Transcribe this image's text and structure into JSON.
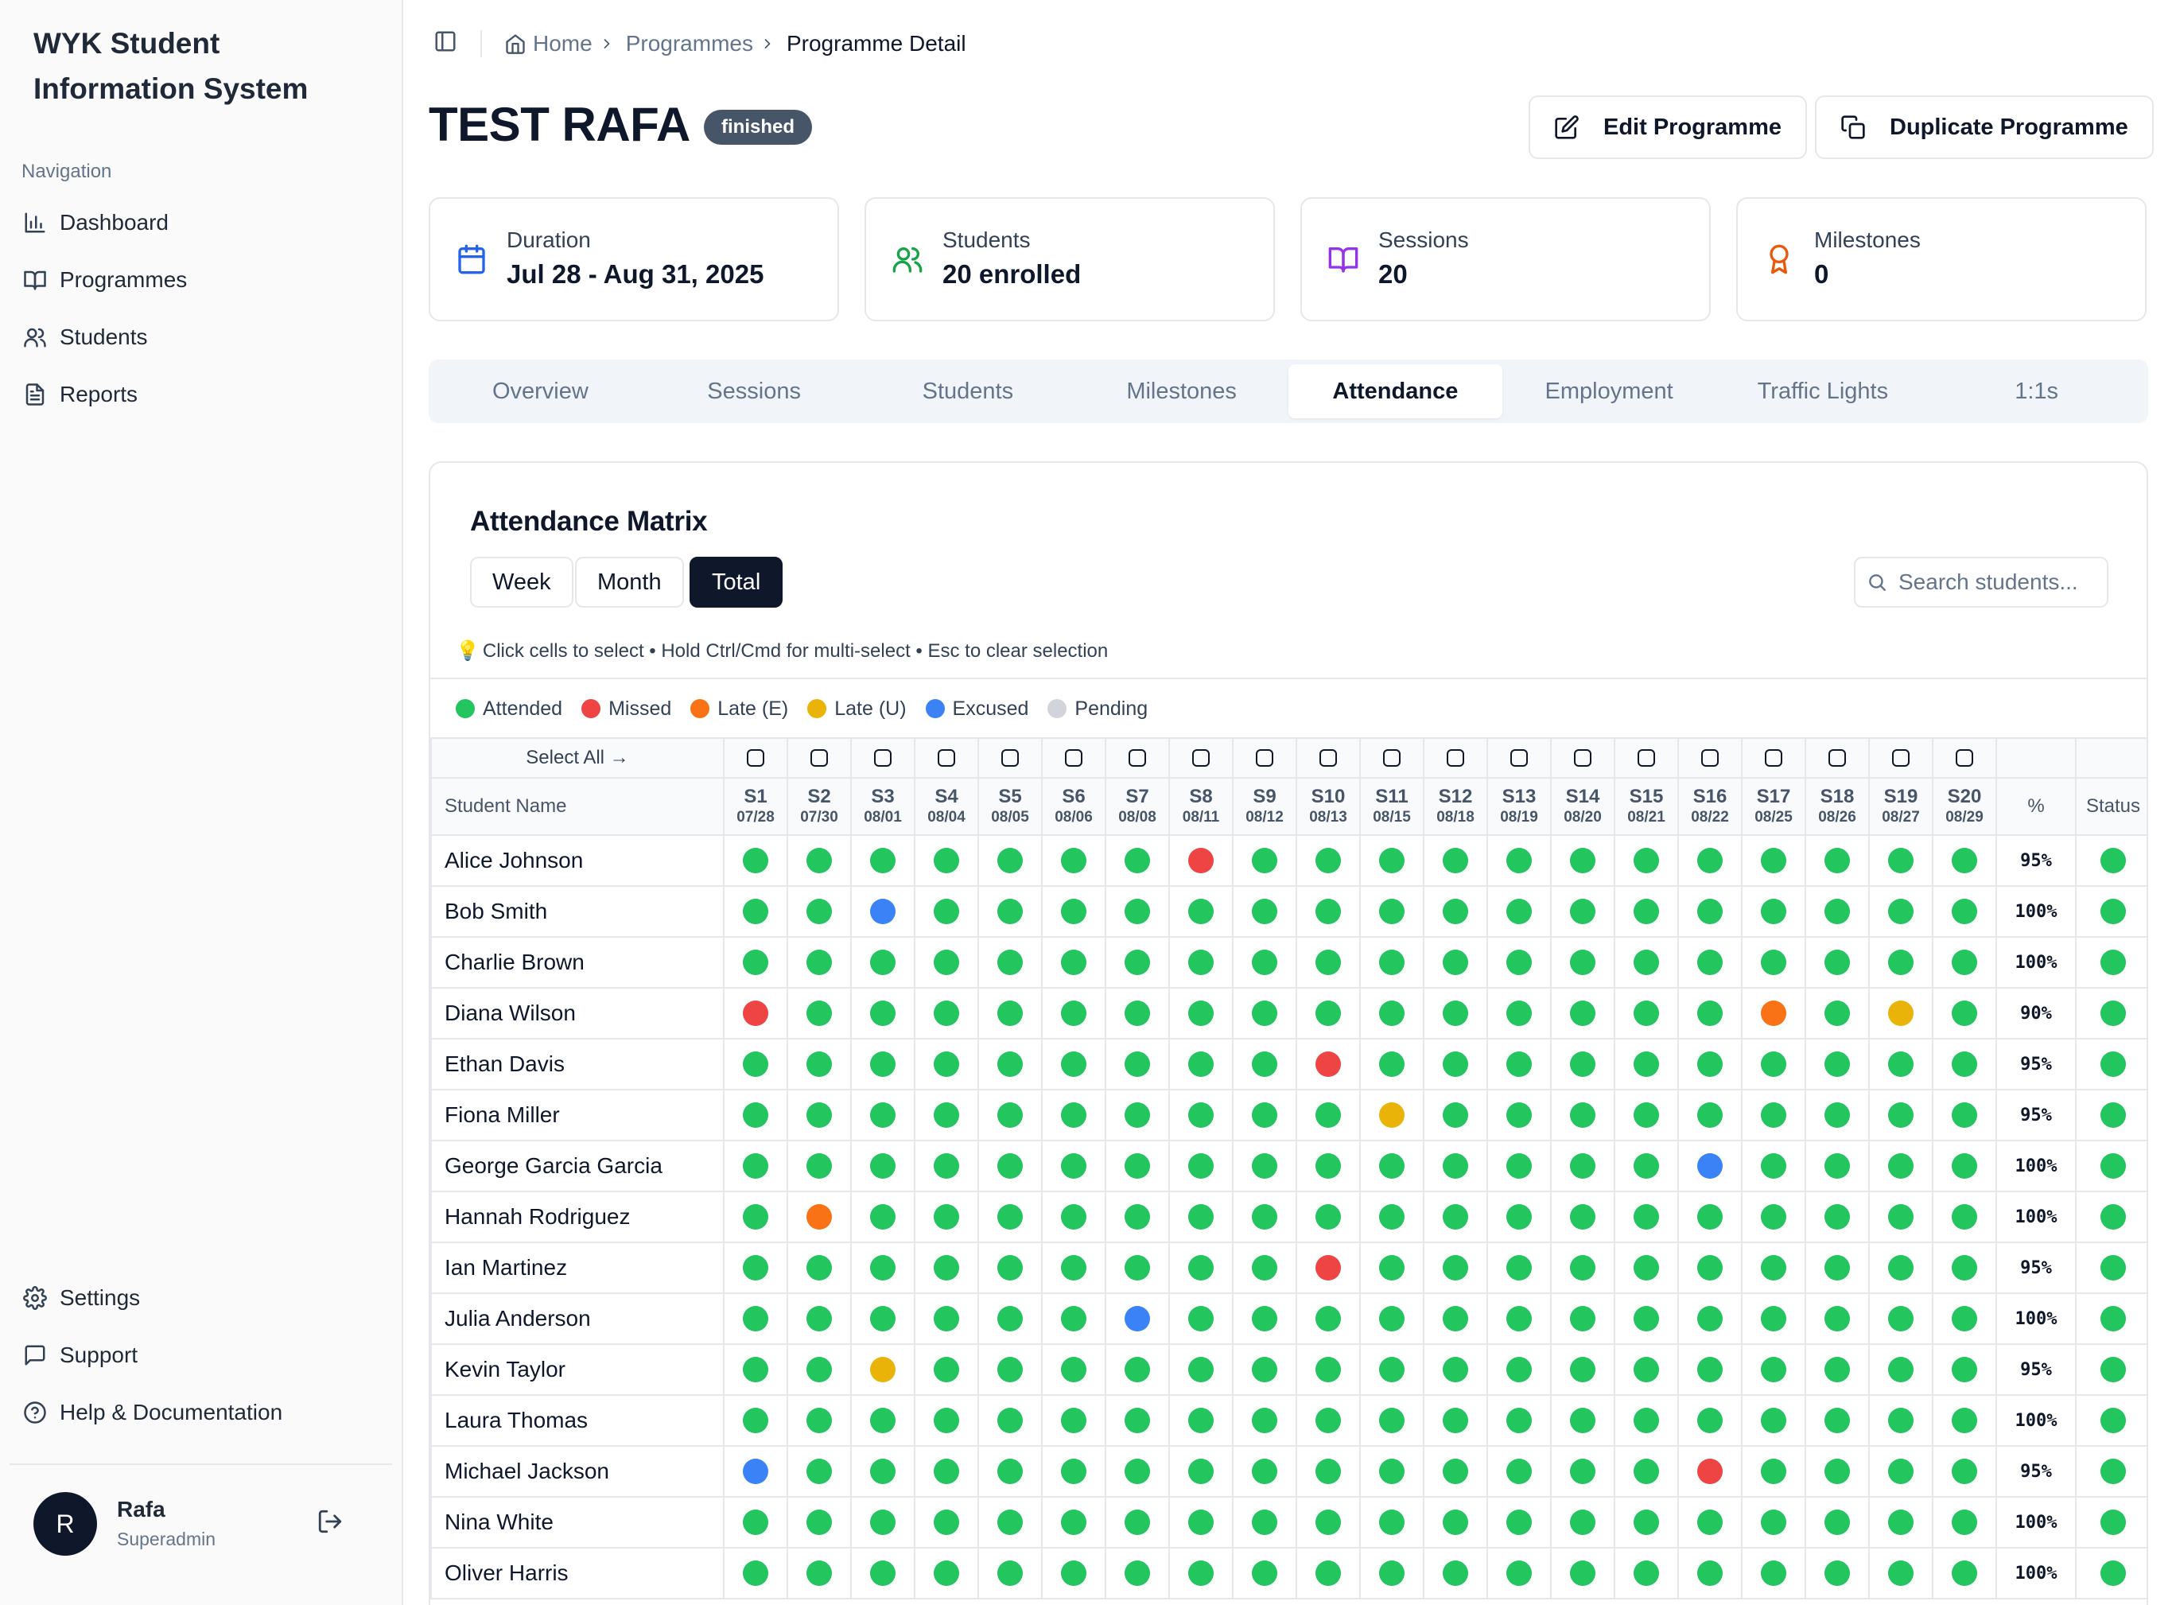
{
  "sidebar": {
    "app_title": "WYK Student Information System",
    "nav_heading": "Navigation",
    "nav_items": [
      {
        "label": "Dashboard",
        "icon": "bar-chart-icon"
      },
      {
        "label": "Programmes",
        "icon": "book-open-icon"
      },
      {
        "label": "Students",
        "icon": "users-icon"
      },
      {
        "label": "Reports",
        "icon": "file-text-icon"
      }
    ],
    "footer_items": [
      {
        "label": "Settings",
        "icon": "gear-icon"
      },
      {
        "label": "Support",
        "icon": "message-square-icon"
      },
      {
        "label": "Help & Documentation",
        "icon": "help-circle-icon"
      }
    ],
    "user": {
      "initial": "R",
      "name": "Rafa",
      "role": "Superadmin"
    }
  },
  "breadcrumb": {
    "home": "Home",
    "programmes": "Programmes",
    "current": "Programme Detail"
  },
  "programme": {
    "title": "TEST RAFA",
    "status": "finished",
    "edit_label": "Edit Programme",
    "duplicate_label": "Duplicate Programme"
  },
  "stats": {
    "duration": {
      "label": "Duration",
      "value": "Jul 28 - Aug 31, 2025",
      "color": "#2563eb"
    },
    "students": {
      "label": "Students",
      "value": "20 enrolled",
      "color": "#16a34a"
    },
    "sessions": {
      "label": "Sessions",
      "value": "20",
      "color": "#9333ea"
    },
    "milestones": {
      "label": "Milestones",
      "value": "0",
      "color": "#ea580c"
    }
  },
  "tabs": [
    "Overview",
    "Sessions",
    "Students",
    "Milestones",
    "Attendance",
    "Employment",
    "Traffic Lights",
    "1:1s"
  ],
  "active_tab": "Attendance",
  "attendance": {
    "title": "Attendance Matrix",
    "views": [
      "Week",
      "Month",
      "Total"
    ],
    "active_view": "Total",
    "search_placeholder": "Search students...",
    "hint": "Click cells to select • Hold Ctrl/Cmd for multi-select • Esc to clear selection",
    "legend": [
      {
        "code": "a",
        "label": "Attended",
        "color": "#22c55e"
      },
      {
        "code": "m",
        "label": "Missed",
        "color": "#ef4444"
      },
      {
        "code": "e",
        "label": "Late (E)",
        "color": "#f97316"
      },
      {
        "code": "u",
        "label": "Late (U)",
        "color": "#eab308"
      },
      {
        "code": "x",
        "label": "Excused",
        "color": "#3b82f6"
      },
      {
        "code": "p",
        "label": "Pending",
        "color": "#d1d5db"
      }
    ],
    "select_all_label": "Select All →",
    "name_header": "Student Name",
    "pct_header": "%",
    "status_header": "Status",
    "sessions": [
      {
        "code": "S1",
        "date": "07/28"
      },
      {
        "code": "S2",
        "date": "07/30"
      },
      {
        "code": "S3",
        "date": "08/01"
      },
      {
        "code": "S4",
        "date": "08/04"
      },
      {
        "code": "S5",
        "date": "08/05"
      },
      {
        "code": "S6",
        "date": "08/06"
      },
      {
        "code": "S7",
        "date": "08/08"
      },
      {
        "code": "S8",
        "date": "08/11"
      },
      {
        "code": "S9",
        "date": "08/12"
      },
      {
        "code": "S10",
        "date": "08/13"
      },
      {
        "code": "S11",
        "date": "08/15"
      },
      {
        "code": "S12",
        "date": "08/18"
      },
      {
        "code": "S13",
        "date": "08/19"
      },
      {
        "code": "S14",
        "date": "08/20"
      },
      {
        "code": "S15",
        "date": "08/21"
      },
      {
        "code": "S16",
        "date": "08/22"
      },
      {
        "code": "S17",
        "date": "08/25"
      },
      {
        "code": "S18",
        "date": "08/26"
      },
      {
        "code": "S19",
        "date": "08/27"
      },
      {
        "code": "S20",
        "date": "08/29"
      }
    ],
    "students": [
      {
        "name": "Alice Johnson",
        "marks": "aaaaaaamaaaaaaaaaaaa",
        "pct": "95%",
        "status": "a"
      },
      {
        "name": "Bob Smith",
        "marks": "aaxaaaaaaaaaaaaaaaaa",
        "pct": "100%",
        "status": "a"
      },
      {
        "name": "Charlie Brown",
        "marks": "aaaaaaaaaaaaaaaaaaaa",
        "pct": "100%",
        "status": "a"
      },
      {
        "name": "Diana Wilson",
        "marks": "maaaaaaaaaaaaaaaeaua",
        "pct": "90%",
        "status": "a"
      },
      {
        "name": "Ethan Davis",
        "marks": "aaaaaaaaamaaaaaaaaaa",
        "pct": "95%",
        "status": "a"
      },
      {
        "name": "Fiona Miller",
        "marks": "aaaaaaaaaauaaaaaaaaa",
        "pct": "95%",
        "status": "a"
      },
      {
        "name": "George Garcia Garcia",
        "marks": "aaaaaaaaaaaaaaaxaaaa",
        "pct": "100%",
        "status": "a"
      },
      {
        "name": "Hannah Rodriguez",
        "marks": "aeaaaaaaaaaaaaaaaaaa",
        "pct": "100%",
        "status": "a"
      },
      {
        "name": "Ian Martinez",
        "marks": "aaaaaaaaamaaaaaaaaaa",
        "pct": "95%",
        "status": "a"
      },
      {
        "name": "Julia Anderson",
        "marks": "aaaaaaxaaaaaaaaaaaaa",
        "pct": "100%",
        "status": "a"
      },
      {
        "name": "Kevin Taylor",
        "marks": "aauaaaaaaaaaaaaaaaaa",
        "pct": "95%",
        "status": "a"
      },
      {
        "name": "Laura Thomas",
        "marks": "aaaaaaaaaaaaaaaaaaaa",
        "pct": "100%",
        "status": "a"
      },
      {
        "name": "Michael Jackson",
        "marks": "xaaaaaaaaaaaaaamaaaa",
        "pct": "95%",
        "status": "a"
      },
      {
        "name": "Nina White",
        "marks": "aaaaaaaaaaaaaaaaaaaa",
        "pct": "100%",
        "status": "a"
      },
      {
        "name": "Oliver Harris",
        "marks": "aaaaaaaaaaaaaaaaaaaa",
        "pct": "100%",
        "status": "a"
      }
    ]
  }
}
